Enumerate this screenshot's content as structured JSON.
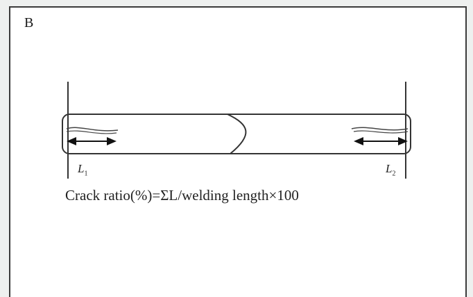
{
  "panel_label": "B",
  "left_label": {
    "letter": "L",
    "sub": "1"
  },
  "right_label": {
    "letter": "L",
    "sub": "2"
  },
  "formula": "Crack ratio(%)=ΣL/welding length×100"
}
